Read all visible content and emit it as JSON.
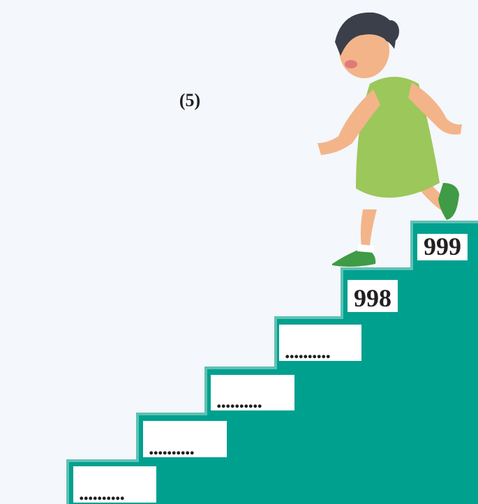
{
  "label": "(5)",
  "steps": [
    {
      "text": "999"
    },
    {
      "text": "998"
    },
    {
      "text": ".........."
    },
    {
      "text": ".........."
    },
    {
      "text": ".........."
    },
    {
      "text": ".........."
    }
  ]
}
